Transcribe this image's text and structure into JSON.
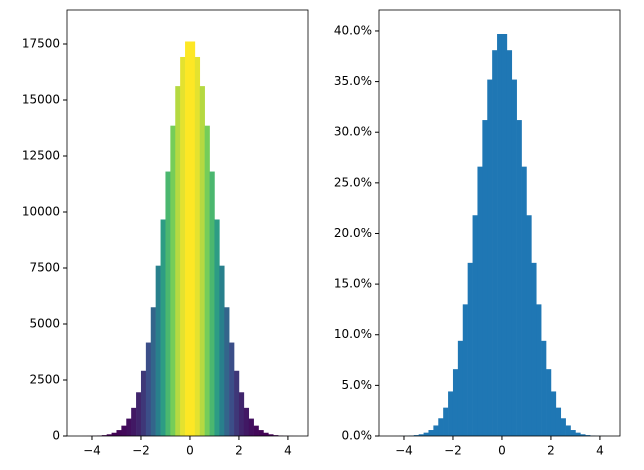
{
  "chart_data": [
    {
      "type": "histogram",
      "colormap": "viridis",
      "bins": [
        -4.4,
        -4.2,
        -4.0,
        -3.8,
        -3.6,
        -3.4,
        -3.2,
        -3.0,
        -2.8,
        -2.6,
        -2.4,
        -2.2,
        -2.0,
        -1.8,
        -1.6,
        -1.4,
        -1.2,
        -1.0,
        -0.8,
        -0.6,
        -0.4,
        -0.2,
        0,
        0.2,
        0.4,
        0.6,
        0.8,
        1.0,
        1.2,
        1.4,
        1.6,
        1.8,
        2.0,
        2.2,
        2.4,
        2.6,
        2.8,
        3.0,
        3.2,
        3.4,
        3.6,
        3.8,
        4.0,
        4.2,
        4.4
      ],
      "counts": [
        2,
        4,
        9,
        19,
        39,
        76,
        145,
        264,
        462,
        777,
        1257,
        1952,
        2912,
        4172,
        5747,
        7604,
        9666,
        11806,
        13854,
        15620,
        16921,
        17612,
        17612,
        16921,
        15620,
        13854,
        11806,
        9666,
        7604,
        5747,
        4172,
        2912,
        1952,
        1257,
        777,
        462,
        264,
        145,
        76,
        39,
        19,
        9,
        4,
        2
      ],
      "xlim": [
        -5.02,
        4.82
      ],
      "ylim": [
        0,
        19018
      ],
      "xticks": [
        {
          "value": -4,
          "label": "−4"
        },
        {
          "value": -2,
          "label": "−2"
        },
        0,
        2,
        4
      ],
      "yticks": [
        0,
        2500,
        5000,
        7500,
        10000,
        12500,
        15000,
        17500
      ]
    },
    {
      "type": "histogram",
      "color": "#1f77b4",
      "bins": [
        -4.4,
        -4.2,
        -4.0,
        -3.8,
        -3.6,
        -3.4,
        -3.2,
        -3.0,
        -2.8,
        -2.6,
        -2.4,
        -2.2,
        -2.0,
        -1.8,
        -1.6,
        -1.4,
        -1.2,
        -1.0,
        -0.8,
        -0.6,
        -0.4,
        -0.2,
        0,
        0.2,
        0.4,
        0.6,
        0.8,
        1.0,
        1.2,
        1.4,
        1.6,
        1.8,
        2.0,
        2.2,
        2.4,
        2.6,
        2.8,
        3.0,
        3.2,
        3.4,
        3.6,
        3.8,
        4.0,
        4.2,
        4.4
      ],
      "counts": [
        0.004,
        0.01,
        0.02,
        0.04,
        0.09,
        0.17,
        0.33,
        0.59,
        1.04,
        1.75,
        2.8,
        4.4,
        6.6,
        9.4,
        13.0,
        17.1,
        21.8,
        26.6,
        31.2,
        35.2,
        38.1,
        39.7,
        39.7,
        38.1,
        35.2,
        31.2,
        26.6,
        21.8,
        17.1,
        13.0,
        9.4,
        6.6,
        4.4,
        2.8,
        1.75,
        1.04,
        0.59,
        0.33,
        0.17,
        0.09,
        0.04,
        0.02,
        0.01,
        0.004
      ],
      "xlim": [
        -5.02,
        4.82
      ],
      "ylim": [
        0,
        42.07
      ],
      "xticks": [
        {
          "value": -4,
          "label": "−4"
        },
        {
          "value": -2,
          "label": "−2"
        },
        0,
        2,
        4
      ],
      "yticks": [
        {
          "value": 0,
          "label": "0.0%"
        },
        {
          "value": 5,
          "label": "5.0%"
        },
        {
          "value": 10,
          "label": "10.0%"
        },
        {
          "value": 15,
          "label": "15.0%"
        },
        {
          "value": 20,
          "label": "20.0%"
        },
        {
          "value": 25,
          "label": "25.0%"
        },
        {
          "value": 30,
          "label": "30.0%"
        },
        {
          "value": 35,
          "label": "35.0%"
        },
        {
          "value": 40,
          "label": "40.0%"
        }
      ]
    }
  ]
}
